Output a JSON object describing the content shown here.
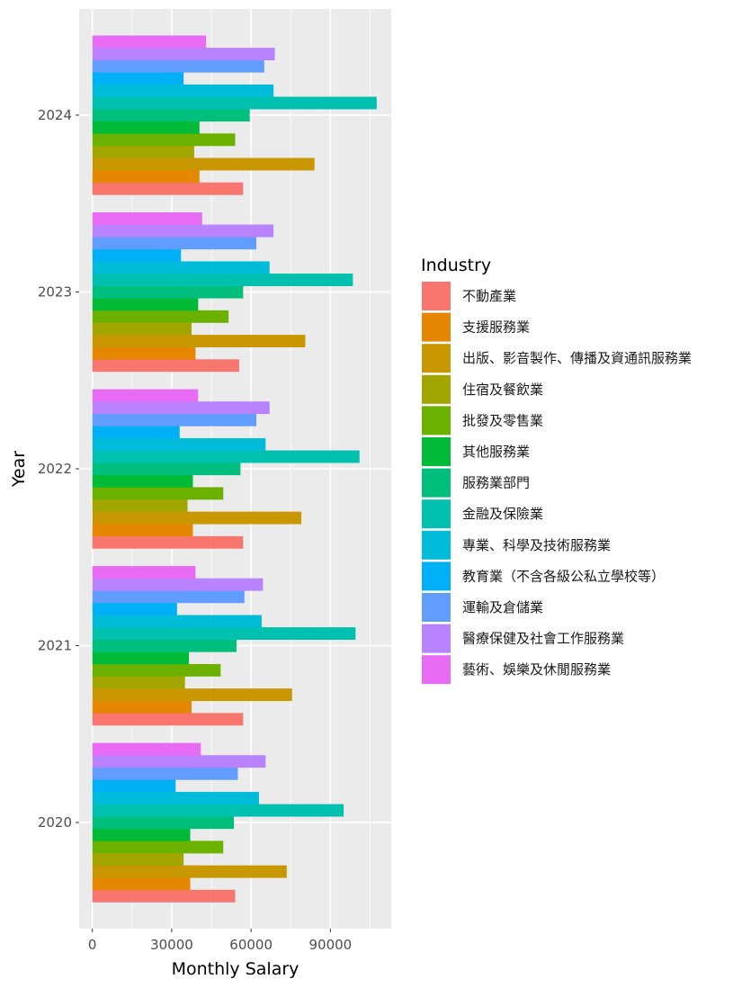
{
  "chart_data": {
    "type": "bar",
    "orientation": "horizontal",
    "grouped": true,
    "xlabel": "Monthly Salary",
    "ylabel": "Year",
    "xlim": [
      -5000,
      113000
    ],
    "x_ticks": [
      0,
      30000,
      60000,
      90000
    ],
    "categories": [
      "2020",
      "2021",
      "2022",
      "2023",
      "2024"
    ],
    "legend_title": "Industry",
    "legend_position": "right",
    "grid": true,
    "series": [
      {
        "name": "不動產業",
        "color": "#F8766D",
        "values": [
          54000,
          57000,
          57000,
          55500,
          57000
        ]
      },
      {
        "name": "支援服務業",
        "color": "#E58700",
        "values": [
          37000,
          37500,
          38000,
          39000,
          40500
        ]
      },
      {
        "name": "出版、影音製作、傳播及資通訊服務業",
        "color": "#C99800",
        "values": [
          73500,
          75500,
          79000,
          80500,
          84000
        ]
      },
      {
        "name": "住宿及餐飲業",
        "color": "#A3A500",
        "values": [
          34500,
          35000,
          36000,
          37500,
          38500
        ]
      },
      {
        "name": "批發及零售業",
        "color": "#6BB100",
        "values": [
          49500,
          48500,
          49500,
          51500,
          54000
        ]
      },
      {
        "name": "其他服務業",
        "color": "#00BA38",
        "values": [
          37000,
          36500,
          38000,
          40000,
          40500
        ]
      },
      {
        "name": "服務業部門",
        "color": "#00BF7D",
        "values": [
          53500,
          54500,
          56000,
          57000,
          59500
        ]
      },
      {
        "name": "金融及保險業",
        "color": "#00C0AF",
        "values": [
          95000,
          99500,
          101000,
          98500,
          107500
        ]
      },
      {
        "name": "專業、科學及技術服務業",
        "color": "#00BCD8",
        "values": [
          63000,
          64000,
          65500,
          67000,
          68500
        ]
      },
      {
        "name": "教育業（不含各級公私立學校等）",
        "color": "#00B0F6",
        "values": [
          31500,
          32000,
          33000,
          33500,
          34500
        ]
      },
      {
        "name": "運輸及倉儲業",
        "color": "#619CFF",
        "values": [
          55000,
          57500,
          62000,
          62000,
          65000
        ]
      },
      {
        "name": "醫療保健及社會工作服務業",
        "color": "#B983FF",
        "values": [
          65500,
          64500,
          67000,
          68500,
          69000
        ]
      },
      {
        "name": "藝術、娛樂及休閒服務業",
        "color": "#E76BF3",
        "values": [
          41000,
          39000,
          40000,
          41500,
          43000
        ]
      }
    ]
  }
}
